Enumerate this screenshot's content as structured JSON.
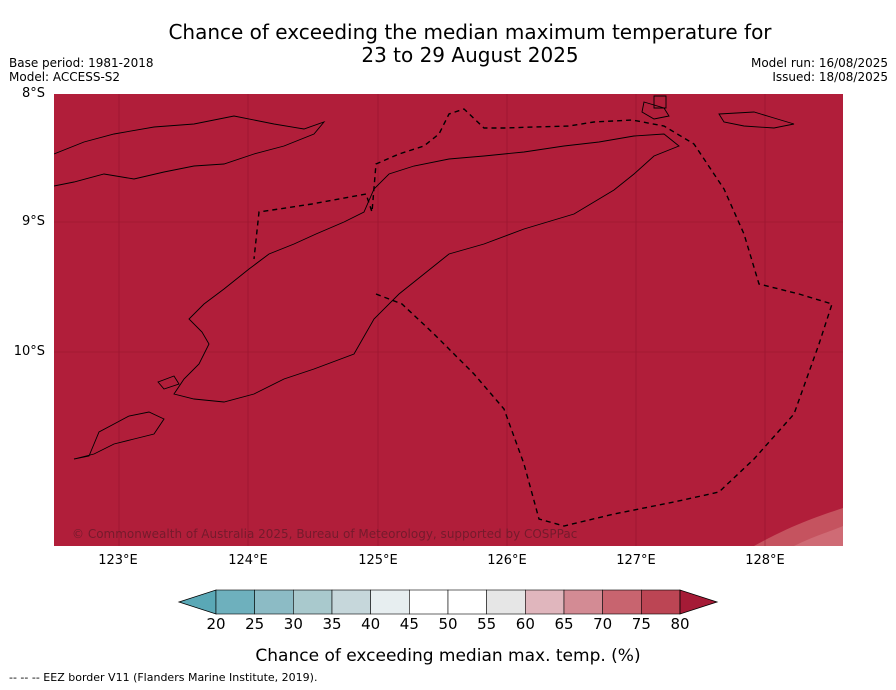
{
  "title": {
    "line1": "Chance of exceeding the median maximum temperature for",
    "line2": "23 to 29 August 2025"
  },
  "meta_left": {
    "base_period": "Base period: 1981-2018",
    "model": "Model: ACCESS-S2"
  },
  "meta_right": {
    "model_run": "Model run: 16/08/2025",
    "issued": "Issued: 18/08/2025"
  },
  "map": {
    "lat_labels": [
      "8°S",
      "9°S",
      "10°S"
    ],
    "lon_labels": [
      "123°E",
      "124°E",
      "125°E",
      "126°E",
      "127°E",
      "128°E"
    ],
    "lat_range": [
      -11.5,
      -8.0
    ],
    "lon_range": [
      122.5,
      128.6
    ],
    "dominant_category": "above 80%",
    "dominant_color": "#b11e3a",
    "corner_patch_category": "75-80%",
    "corner_patch_color": "#c5535f",
    "coastline_color": "#000000",
    "eez_border_style": "dashed",
    "copyright": "© Commonwealth of Australia 2025, Bureau of Meteorology, supported by COSPPac"
  },
  "colorbar": {
    "ticks": [
      "20",
      "25",
      "30",
      "35",
      "40",
      "45",
      "50",
      "55",
      "60",
      "65",
      "70",
      "75",
      "80"
    ],
    "colors": [
      "#5aa8b6",
      "#6eb0bd",
      "#8cbbc5",
      "#a9c9cd",
      "#c6d7db",
      "#e7eef0",
      "#ffffff",
      "#ffffff",
      "#e6e6e6",
      "#e0b6bd",
      "#d38b94",
      "#c8646f",
      "#bc4554",
      "#a51b36"
    ],
    "label": "Chance of exceeding median max. temp. (%)"
  },
  "footnote": "--  --  -- EEZ border V11 (Flanders Marine Institute, 2019)."
}
